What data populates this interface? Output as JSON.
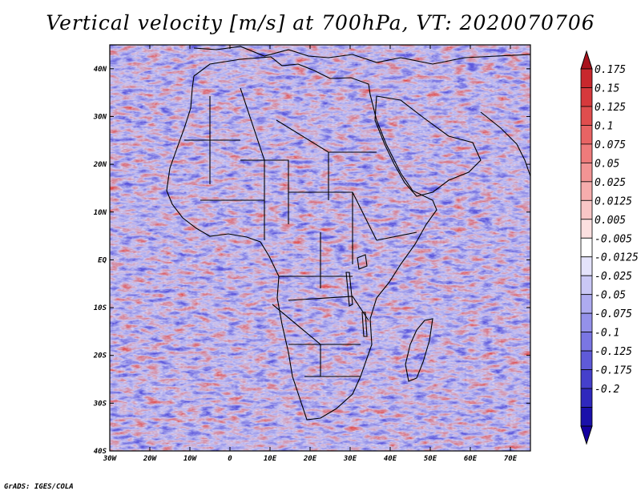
{
  "title": "Vertical velocity [m/s] at 700hPa, VT: 2020070706",
  "credit": "GrADS: IGES/COLA",
  "map": {
    "lon_range": [
      -30,
      75
    ],
    "lat_range": [
      -40,
      45
    ],
    "lat_ticks": [
      "40N",
      "30N",
      "20N",
      "10N",
      "EQ",
      "10S",
      "20S",
      "30S",
      "40S"
    ],
    "lat_values": [
      40,
      30,
      20,
      10,
      0,
      -10,
      -20,
      -30,
      -40
    ],
    "lon_ticks": [
      "30W",
      "20W",
      "10W",
      "0",
      "10E",
      "20E",
      "30E",
      "40E",
      "50E",
      "60E",
      "70E"
    ],
    "lon_values": [
      -30,
      -20,
      -10,
      0,
      10,
      20,
      30,
      40,
      50,
      60,
      70
    ]
  },
  "colorbar": {
    "labels": [
      "0.175",
      "0.15",
      "0.125",
      "0.1",
      "0.075",
      "0.05",
      "0.025",
      "0.0125",
      "0.005",
      "-0.005",
      "-0.0125",
      "-0.025",
      "-0.05",
      "-0.075",
      "-0.1",
      "-0.125",
      "-0.175",
      "-0.2"
    ],
    "colors": [
      "#c8282d",
      "#d6393c",
      "#e04e4e",
      "#e86464",
      "#ee7b7b",
      "#f29494",
      "#f6adad",
      "#f9c6c6",
      "#fce0e0",
      "#ffffff",
      "#e4e3fb",
      "#cac8f6",
      "#aeabf0",
      "#9491ea",
      "#7a76e3",
      "#5f5ad8",
      "#4540cb",
      "#2f28bd",
      "#1a10aa"
    ],
    "top_color": "#a8121c",
    "bottom_color": "#1400a0"
  }
}
